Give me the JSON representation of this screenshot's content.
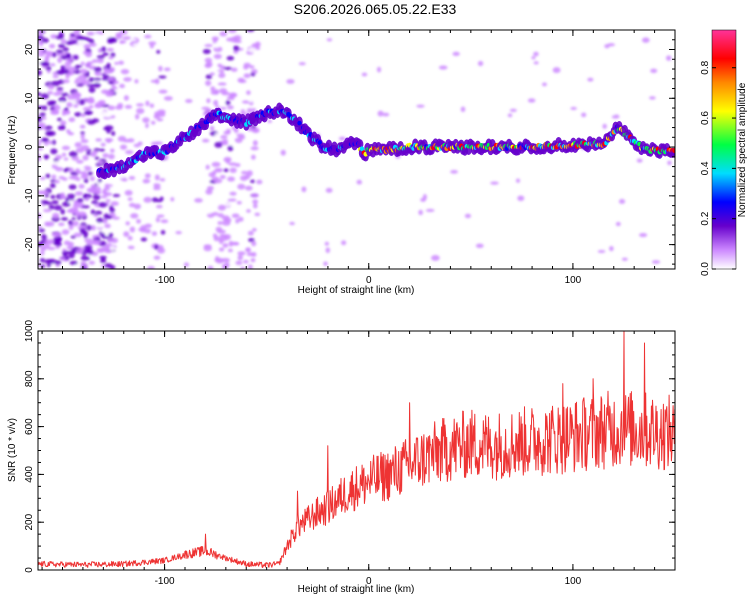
{
  "title": "S206.2026.065.05.22.E33",
  "chart_data": [
    {
      "type": "heatmap",
      "xlabel": "Height of straight line (km)",
      "ylabel": "Frequency (Hz)",
      "xlim": [
        -162,
        150
      ],
      "ylim": [
        -25,
        24
      ],
      "x_ticks": [
        {
          "value": -100,
          "label": "-100"
        },
        {
          "value": 0,
          "label": "0"
        },
        {
          "value": 100,
          "label": "100"
        }
      ],
      "y_ticks": [
        {
          "value": 20,
          "label": "20"
        },
        {
          "value": 10,
          "label": "10"
        },
        {
          "value": 0,
          "label": "0"
        },
        {
          "value": -10,
          "label": "-10"
        },
        {
          "value": -20,
          "label": "-20"
        }
      ],
      "ridge": [
        [
          -130,
          -5
        ],
        [
          -120,
          -4
        ],
        [
          -110,
          -1.5
        ],
        [
          -100,
          -1
        ],
        [
          -90,
          2
        ],
        [
          -80,
          5
        ],
        [
          -75,
          7
        ],
        [
          -70,
          6
        ],
        [
          -60,
          5
        ],
        [
          -50,
          7
        ],
        [
          -42,
          7.5
        ],
        [
          -35,
          5
        ],
        [
          -28,
          2
        ],
        [
          -22,
          0
        ],
        [
          -15,
          -0.5
        ],
        [
          -10,
          0.5
        ],
        [
          -6,
          1
        ],
        [
          -2,
          -1.5
        ],
        [
          0,
          -0.5
        ],
        [
          10,
          -0.5
        ],
        [
          20,
          0
        ],
        [
          40,
          0
        ],
        [
          60,
          0
        ],
        [
          80,
          0
        ],
        [
          100,
          0.5
        ],
        [
          115,
          0.5
        ],
        [
          122,
          4
        ],
        [
          128,
          2
        ],
        [
          135,
          -0.5
        ],
        [
          150,
          -1
        ]
      ],
      "colorbar": {
        "label": "Normalized spectral amplitude",
        "range": [
          0,
          0.95
        ],
        "ticks": [
          {
            "value": 0.0,
            "label": "0.0"
          },
          {
            "value": 0.2,
            "label": "0.2"
          },
          {
            "value": 0.4,
            "label": "0.4"
          },
          {
            "value": 0.6,
            "label": "0.6"
          },
          {
            "value": 0.8,
            "label": "0.8"
          }
        ],
        "colors": [
          "#ffffff",
          "#cc88ff",
          "#6600cc",
          "#0000ff",
          "#00ddff",
          "#00ff44",
          "#ffff00",
          "#ff8800",
          "#ff0000",
          "#ff3399"
        ]
      }
    },
    {
      "type": "line",
      "xlabel": "Height of straight line (km)",
      "ylabel": "SNR (10 * v/v)",
      "xlim": [
        -162,
        150
      ],
      "ylim": [
        0,
        1000
      ],
      "x_ticks": [
        {
          "value": -100,
          "label": "-100"
        },
        {
          "value": 0,
          "label": "0"
        },
        {
          "value": 100,
          "label": "100"
        }
      ],
      "y_ticks": [
        {
          "value": 0,
          "label": "0"
        },
        {
          "value": 200,
          "label": "200"
        },
        {
          "value": 400,
          "label": "400"
        },
        {
          "value": 600,
          "label": "600"
        },
        {
          "value": 800,
          "label": "800"
        },
        {
          "value": 1000,
          "label": "1000"
        }
      ],
      "series": [
        {
          "name": "SNR",
          "color": "#ee3333"
        }
      ],
      "x": [
        -162,
        -140,
        -120,
        -100,
        -90,
        -80,
        -70,
        -60,
        -50,
        -44,
        -40,
        -35,
        -30,
        -25,
        -20,
        -10,
        0,
        10,
        20,
        30,
        40,
        50,
        60,
        70,
        80,
        90,
        100,
        110,
        120,
        130,
        140,
        150
      ],
      "y": [
        25,
        22,
        25,
        40,
        65,
        80,
        50,
        25,
        20,
        25,
        100,
        180,
        210,
        240,
        260,
        330,
        370,
        400,
        440,
        480,
        510,
        530,
        520,
        530,
        540,
        550,
        560,
        580,
        590,
        590,
        580,
        570
      ],
      "peaks": [
        [
          -80,
          150
        ],
        [
          -35,
          330
        ],
        [
          -20,
          520
        ],
        [
          20,
          700
        ],
        [
          95,
          780
        ],
        [
          110,
          800
        ],
        [
          125,
          1000
        ],
        [
          135,
          950
        ]
      ]
    }
  ]
}
